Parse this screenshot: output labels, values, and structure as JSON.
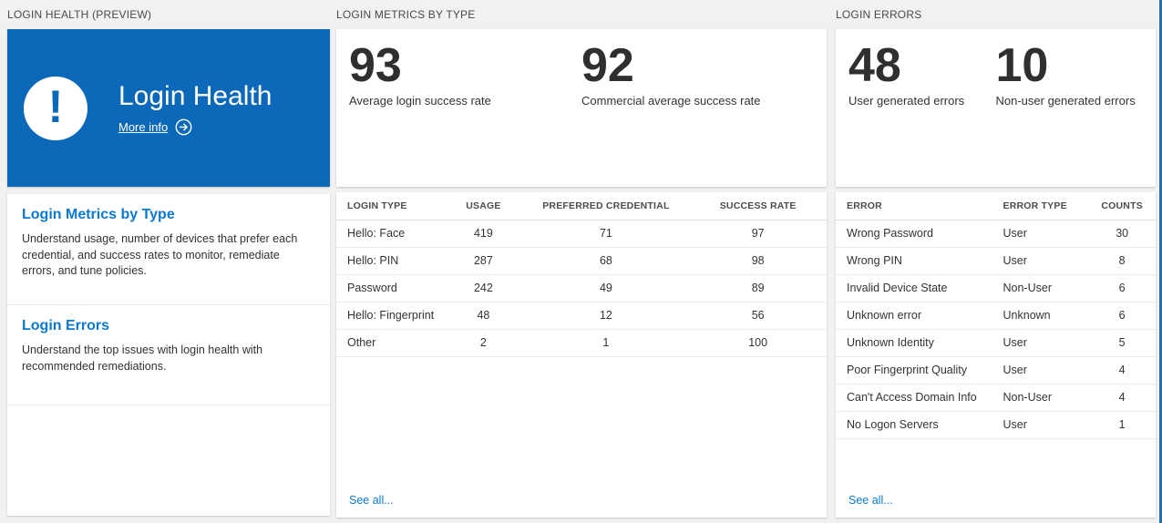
{
  "theme": {
    "page_background": "#f1f1f1",
    "tile_blue": "#0c69b9",
    "link_blue": "#0b79d0",
    "edge_blue": "#2472a8"
  },
  "columns": {
    "health": {
      "section_title": "LOGIN HEALTH (PREVIEW)",
      "tile": {
        "title": "Login Health",
        "more_info_label": "More info",
        "alert_icon": "exclamation-icon",
        "arrow_icon": "arrow-right-circle-icon"
      },
      "sections": [
        {
          "title": "Login Metrics by Type",
          "description": "Understand usage, number of devices that prefer each credential, and success rates to monitor, remediate errors, and tune policies."
        },
        {
          "title": "Login Errors",
          "description": "Understand the top issues with login health with recommended remediations."
        }
      ]
    },
    "metrics": {
      "section_title": "LOGIN METRICS BY TYPE",
      "stats": [
        {
          "value": "93",
          "label": "Average login success rate"
        },
        {
          "value": "92",
          "label": "Commercial average success rate"
        }
      ],
      "table": {
        "columns": [
          "LOGIN TYPE",
          "USAGE",
          "PREFERRED CREDENTIAL",
          "SUCCESS RATE"
        ],
        "rows": [
          [
            "Hello: Face",
            "419",
            "71",
            "97"
          ],
          [
            "Hello: PIN",
            "287",
            "68",
            "98"
          ],
          [
            "Password",
            "242",
            "49",
            "89"
          ],
          [
            "Hello: Fingerprint",
            "48",
            "12",
            "56"
          ],
          [
            "Other",
            "2",
            "1",
            "100"
          ]
        ]
      },
      "see_all_label": "See all..."
    },
    "errors": {
      "section_title": "LOGIN ERRORS",
      "stats": [
        {
          "value": "48",
          "label": "User generated errors"
        },
        {
          "value": "10",
          "label": "Non-user generated errors"
        }
      ],
      "table": {
        "columns": [
          "ERROR",
          "ERROR TYPE",
          "COUNTS"
        ],
        "rows": [
          [
            "Wrong Password",
            "User",
            "30"
          ],
          [
            "Wrong PIN",
            "User",
            "8"
          ],
          [
            "Invalid Device State",
            "Non-User",
            "6"
          ],
          [
            "Unknown error",
            "Unknown",
            "6"
          ],
          [
            "Unknown Identity",
            "User",
            "5"
          ],
          [
            "Poor Fingerprint Quality",
            "User",
            "4"
          ],
          [
            "Can't Access Domain Info",
            "Non-User",
            "4"
          ],
          [
            "No Logon Servers",
            "User",
            "1"
          ]
        ]
      },
      "see_all_label": "See all..."
    }
  }
}
